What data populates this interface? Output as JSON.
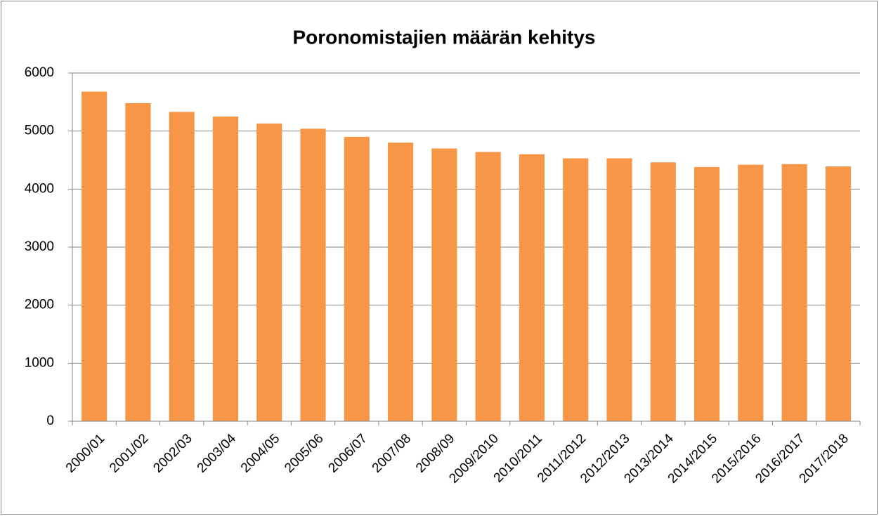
{
  "chart_data": {
    "type": "bar",
    "title": "Poronomistajien määrän kehitys",
    "categories": [
      "2000/01",
      "2001/02",
      "2002/03",
      "2003/04",
      "2004/05",
      "2005/06",
      "2006/07",
      "2007/08",
      "2008/09",
      "2009/2010",
      "2010/2011",
      "2011/2012",
      "2012/2013",
      "2013/2014",
      "2014/2015",
      "2015/2016",
      "2016/2017",
      "2017/2018"
    ],
    "values": [
      5680,
      5480,
      5330,
      5250,
      5130,
      5040,
      4900,
      4800,
      4700,
      4640,
      4600,
      4530,
      4530,
      4460,
      4380,
      4420,
      4430,
      4390
    ],
    "color": "#f79646",
    "ylim": [
      0,
      6000
    ],
    "yticks": [
      0,
      1000,
      2000,
      3000,
      4000,
      5000,
      6000
    ],
    "grid": true
  }
}
